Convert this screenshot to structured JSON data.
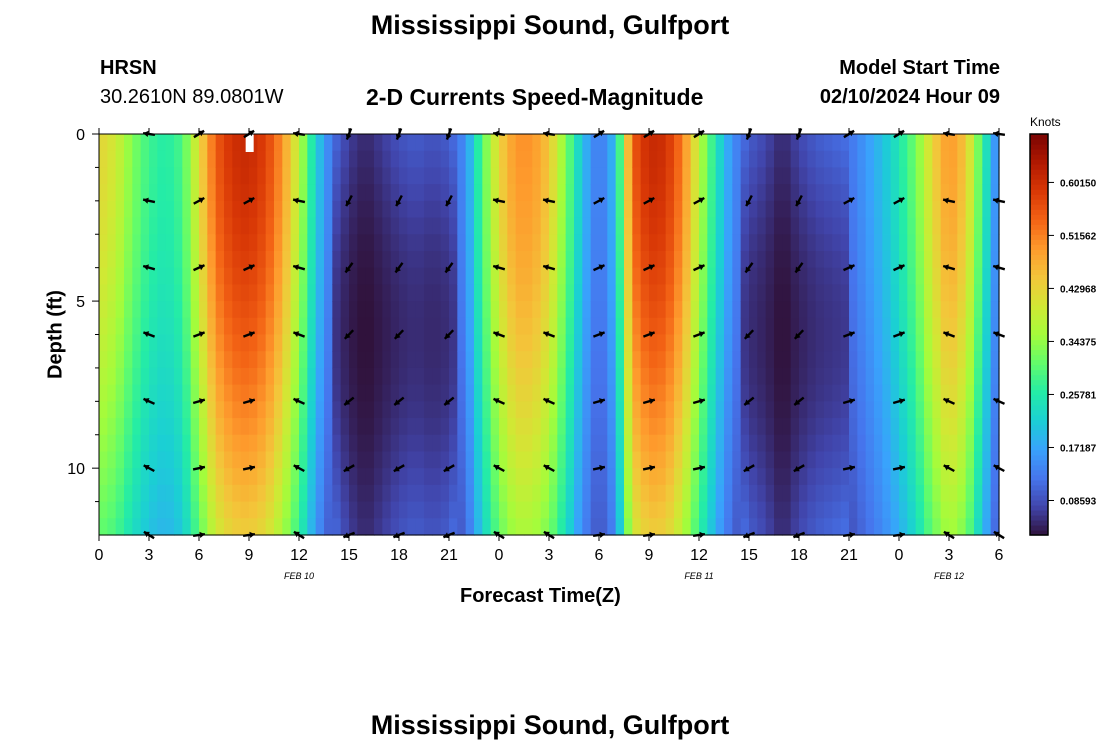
{
  "header": {
    "title": "Mississippi Sound, Gulfport",
    "station_id": "HRSN",
    "station_coords": "30.2610N  89.0801W",
    "subtitle": "2-D Currents Speed-Magnitude",
    "model_start_label": "Model Start Time",
    "model_start_value": "02/10/2024 Hour 09"
  },
  "footer": {
    "title": "Mississippi Sound, Gulfport"
  },
  "chart_data": {
    "type": "heatmap",
    "title": "Mississippi Sound, Gulfport",
    "subtitle": "2-D Currents Speed-Magnitude",
    "xlabel": "Forecast Time(Z)",
    "ylabel": "Depth (ft)",
    "x_ticks": [
      "0",
      "3",
      "6",
      "9",
      "12",
      "15",
      "18",
      "21",
      "0",
      "3",
      "6",
      "9",
      "12",
      "15",
      "18",
      "21",
      "0",
      "3",
      "6"
    ],
    "date_labels": [
      {
        "label": "FEB 10",
        "at_hour": 12
      },
      {
        "label": "FEB 11",
        "at_hour": 36
      },
      {
        "label": "FEB 12",
        "at_hour": 51
      }
    ],
    "x_range_hours": [
      0,
      54
    ],
    "y_ticks": [
      "0",
      "5",
      "10"
    ],
    "y_range_ft": [
      0,
      12
    ],
    "colorbar": {
      "unit": "Knots",
      "ticks": [
        "0.60150",
        "0.51562",
        "0.42968",
        "0.34375",
        "0.25781",
        "0.17187",
        "0.08593"
      ],
      "tick_values": [
        0.6015,
        0.51562,
        0.42968,
        0.34375,
        0.25781,
        0.17187,
        0.08593
      ],
      "range": [
        0.03,
        0.68
      ],
      "colors": [
        "#30123b",
        "#4145ab",
        "#4675ed",
        "#39a2fc",
        "#1bcfd4",
        "#24eca6",
        "#61fc6c",
        "#a4fc3b",
        "#d1e834",
        "#f3c63a",
        "#fe9b2d",
        "#f36315",
        "#d93806",
        "#b11901",
        "#7a0403"
      ]
    },
    "speed_profile_knots": [
      [
        0,
        0.43
      ],
      [
        1,
        0.4
      ],
      [
        2,
        0.33
      ],
      [
        3,
        0.28
      ],
      [
        4,
        0.26
      ],
      [
        5,
        0.29
      ],
      [
        6,
        0.42
      ],
      [
        7,
        0.55
      ],
      [
        8,
        0.6
      ],
      [
        9,
        0.61
      ],
      [
        10,
        0.58
      ],
      [
        11,
        0.5
      ],
      [
        12,
        0.38
      ],
      [
        13,
        0.22
      ],
      [
        14,
        0.12
      ],
      [
        15,
        0.07
      ],
      [
        16,
        0.05
      ],
      [
        17,
        0.07
      ],
      [
        18,
        0.09
      ],
      [
        19,
        0.1
      ],
      [
        20,
        0.09
      ],
      [
        21,
        0.1
      ],
      [
        22,
        0.15
      ],
      [
        23,
        0.3
      ],
      [
        24,
        0.43
      ],
      [
        25,
        0.5
      ],
      [
        26,
        0.5
      ],
      [
        27,
        0.45
      ],
      [
        28,
        0.33
      ],
      [
        29,
        0.2
      ],
      [
        30,
        0.12
      ],
      [
        31,
        0.2
      ],
      [
        32,
        0.55
      ],
      [
        33,
        0.61
      ],
      [
        34,
        0.6
      ],
      [
        35,
        0.52
      ],
      [
        36,
        0.38
      ],
      [
        37,
        0.25
      ],
      [
        38,
        0.15
      ],
      [
        39,
        0.1
      ],
      [
        40,
        0.08
      ],
      [
        41,
        0.05
      ],
      [
        42,
        0.08
      ],
      [
        43,
        0.1
      ],
      [
        44,
        0.11
      ],
      [
        45,
        0.12
      ],
      [
        46,
        0.16
      ],
      [
        47,
        0.2
      ],
      [
        48,
        0.25
      ],
      [
        49,
        0.32
      ],
      [
        50,
        0.43
      ],
      [
        51,
        0.5
      ],
      [
        52,
        0.45
      ],
      [
        53,
        0.28
      ],
      [
        54,
        0.12
      ]
    ],
    "vector_arrows": "direction of current shown by arrows at 3-hourly intervals and 2 ft depth intervals"
  }
}
